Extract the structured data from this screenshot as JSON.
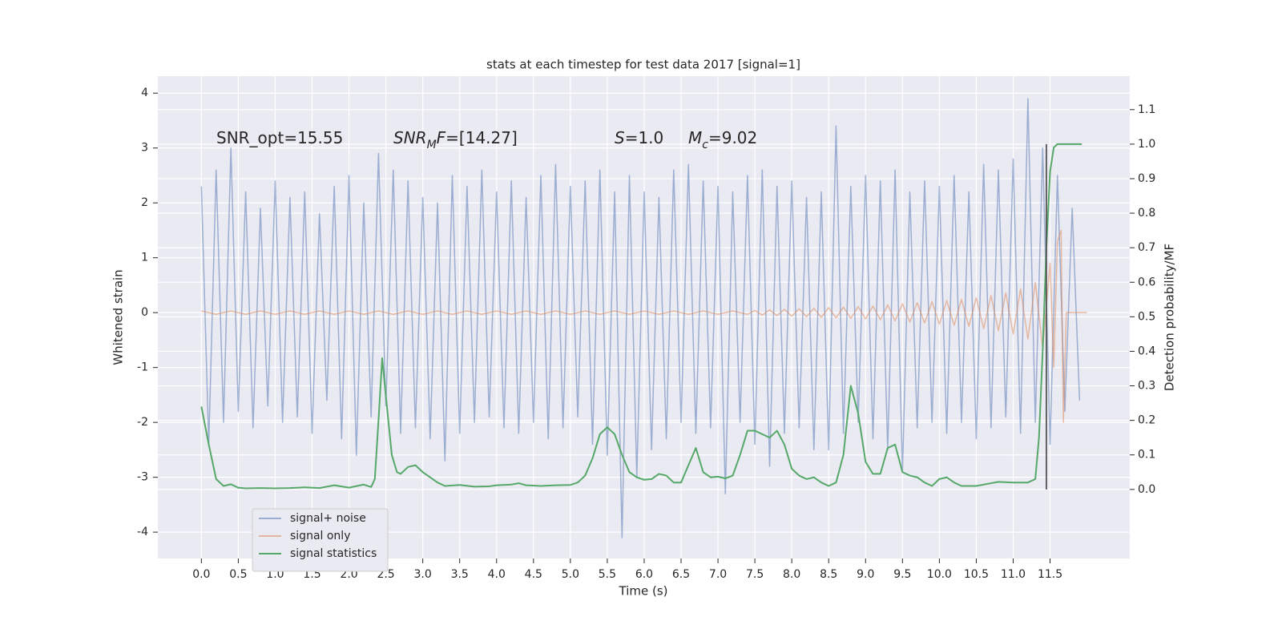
{
  "chart_data": {
    "type": "line",
    "title": "stats at each timestep for test data 2017 [signal=1]",
    "xlabel": "Time (s)",
    "ylabel": "Whitened strain",
    "y2label": "Detection probability/MF",
    "xlim": [
      -0.59,
      12.58
    ],
    "ylim": [
      -4.48,
      4.31
    ],
    "y2lim": [
      -0.2,
      1.197
    ],
    "xticks": [
      {
        "value": 0,
        "label": "0.0"
      },
      {
        "value": 0.5,
        "label": "0.5"
      },
      {
        "value": 1,
        "label": "1.0"
      },
      {
        "value": 1.5,
        "label": "1.5"
      },
      {
        "value": 2,
        "label": "2.0"
      },
      {
        "value": 2.5,
        "label": "2.5"
      },
      {
        "value": 3,
        "label": "3.0"
      },
      {
        "value": 3.5,
        "label": "3.5"
      },
      {
        "value": 4,
        "label": "4.0"
      },
      {
        "value": 4.5,
        "label": "4.5"
      },
      {
        "value": 5,
        "label": "5.0"
      },
      {
        "value": 5.5,
        "label": "5.5"
      },
      {
        "value": 6,
        "label": "6.0"
      },
      {
        "value": 6.5,
        "label": "6.5"
      },
      {
        "value": 7,
        "label": "7.0"
      },
      {
        "value": 7.5,
        "label": "7.5"
      },
      {
        "value": 8,
        "label": "8.0"
      },
      {
        "value": 8.5,
        "label": "8.5"
      },
      {
        "value": 9,
        "label": "9.0"
      },
      {
        "value": 9.5,
        "label": "9.5"
      },
      {
        "value": 10,
        "label": "10.0"
      },
      {
        "value": 10.5,
        "label": "10.5"
      },
      {
        "value": 11,
        "label": "11.0"
      },
      {
        "value": 11.5,
        "label": "11.5"
      }
    ],
    "yticks": [
      -4,
      -3,
      -2,
      -1,
      0,
      1,
      2,
      3,
      4
    ],
    "y2ticks": [
      {
        "value": 0,
        "label": "0.0"
      },
      {
        "value": 0.1,
        "label": "0.1"
      },
      {
        "value": 0.2,
        "label": "0.2"
      },
      {
        "value": 0.3,
        "label": "0.3"
      },
      {
        "value": 0.4,
        "label": "0.4"
      },
      {
        "value": 0.5,
        "label": "0.5"
      },
      {
        "value": 0.6,
        "label": "0.6"
      },
      {
        "value": 0.7,
        "label": "0.7"
      },
      {
        "value": 0.8,
        "label": "0.8"
      },
      {
        "value": 0.9,
        "label": "0.9"
      },
      {
        "value": 1,
        "label": "1.0"
      },
      {
        "value": 1.1,
        "label": "1.1"
      }
    ],
    "grid": true,
    "legend": "lower left",
    "annotations": [
      [
        {
          "text": "SNR_opt=15.55"
        }
      ],
      [
        {
          "text": "SNR",
          "italic": true
        },
        {
          "text": "M",
          "italic": true,
          "sub": true
        },
        {
          "text": "F",
          "italic": true
        },
        {
          "text": "=[14.27]"
        }
      ],
      [
        {
          "text": "S",
          "italic": true
        },
        {
          "text": "=1.0"
        }
      ],
      [
        {
          "text": "M",
          "italic": true
        },
        {
          "text": "c",
          "italic": true,
          "sub": true
        },
        {
          "text": "=9.02"
        }
      ]
    ],
    "vline": {
      "x": 11.45,
      "ymin": 0,
      "ymax": 1,
      "axis": "y2",
      "color": "#555555"
    },
    "series": [
      {
        "name": "signal+ noise",
        "color": "#4c72b0",
        "alpha": 0.5,
        "x": [
          0.0,
          0.1,
          0.2,
          0.3,
          0.4,
          0.5,
          0.6,
          0.7,
          0.8,
          0.9,
          1.0,
          1.1,
          1.2,
          1.3,
          1.4,
          1.5,
          1.6,
          1.7,
          1.8,
          1.9,
          2.0,
          2.1,
          2.2,
          2.3,
          2.4,
          2.5,
          2.6,
          2.7,
          2.8,
          2.9,
          3.0,
          3.1,
          3.2,
          3.3,
          3.4,
          3.5,
          3.6,
          3.7,
          3.8,
          3.9,
          4.0,
          4.1,
          4.2,
          4.3,
          4.4,
          4.5,
          4.6,
          4.7,
          4.8,
          4.9,
          5.0,
          5.1,
          5.2,
          5.3,
          5.4,
          5.5,
          5.6,
          5.7,
          5.8,
          5.9,
          6.0,
          6.1,
          6.2,
          6.3,
          6.4,
          6.5,
          6.6,
          6.7,
          6.8,
          6.9,
          7.0,
          7.1,
          7.2,
          7.3,
          7.4,
          7.5,
          7.6,
          7.7,
          7.8,
          7.9,
          8.0,
          8.1,
          8.2,
          8.3,
          8.4,
          8.5,
          8.6,
          8.7,
          8.8,
          8.9,
          9.0,
          9.1,
          9.2,
          9.3,
          9.4,
          9.5,
          9.6,
          9.7,
          9.8,
          9.9,
          10.0,
          10.1,
          10.2,
          10.3,
          10.4,
          10.5,
          10.6,
          10.7,
          10.8,
          10.9,
          11.0,
          11.1,
          11.2,
          11.3,
          11.4,
          11.5,
          11.6,
          11.7,
          11.8,
          11.9
        ],
        "values": [
          2.3,
          -2.4,
          2.6,
          -2.0,
          3.0,
          -1.8,
          2.2,
          -2.1,
          1.9,
          -1.7,
          2.4,
          -2.0,
          2.1,
          -1.9,
          2.2,
          -2.2,
          1.8,
          -1.6,
          2.3,
          -2.3,
          2.5,
          -2.6,
          2.0,
          -1.9,
          2.9,
          -1.7,
          2.6,
          -2.2,
          2.4,
          -2.1,
          2.1,
          -2.3,
          2.0,
          -2.7,
          2.5,
          -2.2,
          2.3,
          -2.0,
          2.6,
          -1.9,
          2.2,
          -2.1,
          2.4,
          -2.2,
          2.1,
          -2.0,
          2.5,
          -2.3,
          2.7,
          -2.1,
          2.3,
          -1.9,
          2.4,
          -2.4,
          2.6,
          -2.6,
          2.2,
          -4.1,
          2.5,
          -3.0,
          2.2,
          -2.5,
          2.1,
          -2.3,
          2.6,
          -2.0,
          2.7,
          -2.2,
          2.4,
          -2.1,
          2.3,
          -3.3,
          2.2,
          -2.0,
          2.5,
          -2.4,
          2.6,
          -2.8,
          2.3,
          -2.2,
          2.4,
          -2.1,
          2.1,
          -2.5,
          2.2,
          -2.5,
          3.4,
          -2.2,
          2.3,
          -2.0,
          2.5,
          -2.3,
          2.4,
          -2.5,
          2.6,
          -2.9,
          2.2,
          -2.1,
          2.4,
          -2.0,
          2.3,
          -2.2,
          2.5,
          -2.0,
          2.2,
          -2.3,
          2.7,
          -2.1,
          2.6,
          -1.9,
          2.8,
          -2.2,
          3.9,
          -2.0,
          3.0,
          -2.4,
          2.5,
          -1.8,
          1.9,
          -1.6
        ]
      },
      {
        "name": "signal only",
        "color": "#dd8452",
        "alpha": 0.5,
        "x": [
          0.0,
          0.2,
          0.4,
          0.6,
          0.8,
          1.0,
          1.2,
          1.4,
          1.6,
          1.8,
          2.0,
          2.2,
          2.4,
          2.6,
          2.8,
          3.0,
          3.2,
          3.4,
          3.6,
          3.8,
          4.0,
          4.2,
          4.4,
          4.6,
          4.8,
          5.0,
          5.2,
          5.4,
          5.6,
          5.8,
          6.0,
          6.2,
          6.4,
          6.6,
          6.8,
          7.0,
          7.2,
          7.4,
          7.5,
          7.6,
          7.7,
          7.8,
          7.9,
          8.0,
          8.1,
          8.2,
          8.3,
          8.4,
          8.5,
          8.6,
          8.7,
          8.8,
          8.9,
          9.0,
          9.1,
          9.2,
          9.3,
          9.4,
          9.5,
          9.6,
          9.7,
          9.8,
          9.9,
          10.0,
          10.1,
          10.2,
          10.3,
          10.4,
          10.5,
          10.6,
          10.7,
          10.8,
          10.9,
          11.0,
          11.1,
          11.2,
          11.3,
          11.4,
          11.5,
          11.55,
          11.6,
          11.65,
          11.68,
          11.72,
          12.0
        ],
        "values": [
          0.03,
          -0.03,
          0.03,
          -0.03,
          0.03,
          -0.03,
          0.03,
          -0.03,
          0.03,
          -0.03,
          0.03,
          -0.03,
          0.03,
          -0.03,
          0.03,
          -0.03,
          0.03,
          -0.03,
          0.03,
          -0.03,
          0.03,
          -0.03,
          0.03,
          -0.03,
          0.03,
          -0.03,
          0.03,
          -0.03,
          0.03,
          -0.03,
          0.03,
          -0.03,
          0.03,
          -0.03,
          0.03,
          -0.03,
          0.03,
          -0.03,
          0.04,
          -0.045,
          0.05,
          -0.055,
          0.06,
          -0.065,
          0.07,
          -0.075,
          0.08,
          -0.085,
          0.09,
          -0.095,
          0.1,
          -0.105,
          0.11,
          -0.115,
          0.12,
          -0.13,
          0.14,
          -0.15,
          0.16,
          -0.17,
          0.18,
          -0.19,
          0.2,
          -0.21,
          0.22,
          -0.23,
          0.24,
          -0.25,
          0.27,
          -0.29,
          0.31,
          -0.33,
          0.36,
          -0.39,
          0.43,
          -0.48,
          0.55,
          -0.65,
          0.9,
          -1.0,
          1.3,
          1.5,
          -2.0,
          0.0,
          0.0
        ]
      },
      {
        "name": "signal statistics",
        "color": "#55a868",
        "alpha": 1,
        "axis": "y2",
        "x": [
          0.0,
          0.1,
          0.2,
          0.3,
          0.4,
          0.5,
          0.6,
          0.8,
          1.0,
          1.2,
          1.4,
          1.6,
          1.8,
          2.0,
          2.2,
          2.3,
          2.35,
          2.4,
          2.45,
          2.5,
          2.58,
          2.65,
          2.7,
          2.8,
          2.9,
          3.0,
          3.1,
          3.2,
          3.3,
          3.5,
          3.7,
          3.9,
          4.0,
          4.2,
          4.3,
          4.4,
          4.6,
          4.8,
          5.0,
          5.1,
          5.2,
          5.3,
          5.4,
          5.5,
          5.6,
          5.7,
          5.8,
          5.9,
          6.0,
          6.1,
          6.2,
          6.3,
          6.4,
          6.5,
          6.6,
          6.7,
          6.8,
          6.9,
          7.0,
          7.1,
          7.2,
          7.3,
          7.4,
          7.5,
          7.6,
          7.7,
          7.8,
          7.9,
          8.0,
          8.1,
          8.2,
          8.3,
          8.4,
          8.5,
          8.6,
          8.7,
          8.8,
          8.9,
          9.0,
          9.1,
          9.2,
          9.3,
          9.4,
          9.5,
          9.6,
          9.7,
          9.8,
          9.9,
          10.0,
          10.1,
          10.2,
          10.3,
          10.5,
          10.7,
          10.8,
          11.0,
          11.2,
          11.3,
          11.35,
          11.4,
          11.45,
          11.5,
          11.55,
          11.6,
          11.93
        ],
        "values": [
          0.24,
          0.13,
          0.03,
          0.01,
          0.015,
          0.005,
          0.003,
          0.004,
          0.003,
          0.004,
          0.006,
          0.004,
          0.012,
          0.005,
          0.014,
          0.007,
          0.03,
          0.2,
          0.38,
          0.27,
          0.1,
          0.05,
          0.045,
          0.065,
          0.07,
          0.05,
          0.035,
          0.02,
          0.01,
          0.013,
          0.008,
          0.009,
          0.012,
          0.014,
          0.018,
          0.012,
          0.01,
          0.012,
          0.013,
          0.02,
          0.04,
          0.09,
          0.16,
          0.18,
          0.16,
          0.1,
          0.05,
          0.035,
          0.028,
          0.03,
          0.045,
          0.04,
          0.02,
          0.02,
          0.07,
          0.12,
          0.05,
          0.035,
          0.037,
          0.032,
          0.04,
          0.1,
          0.17,
          0.17,
          0.16,
          0.15,
          0.17,
          0.13,
          0.06,
          0.04,
          0.03,
          0.035,
          0.02,
          0.01,
          0.02,
          0.1,
          0.3,
          0.22,
          0.08,
          0.045,
          0.045,
          0.12,
          0.13,
          0.05,
          0.04,
          0.035,
          0.02,
          0.01,
          0.03,
          0.035,
          0.02,
          0.01,
          0.01,
          0.018,
          0.022,
          0.02,
          0.02,
          0.03,
          0.15,
          0.4,
          0.7,
          0.92,
          0.99,
          1.0,
          1.0
        ]
      }
    ]
  }
}
